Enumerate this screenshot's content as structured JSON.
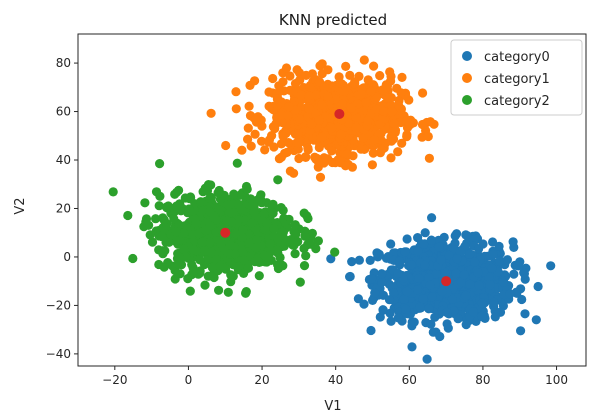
{
  "chart_data": {
    "type": "scatter",
    "title": "KNN predicted",
    "xlabel": "V1",
    "ylabel": "V2",
    "xlim": [
      -30,
      108
    ],
    "ylim": [
      -45,
      92
    ],
    "x_ticks": [
      -20,
      0,
      20,
      40,
      60,
      80,
      100
    ],
    "y_ticks": [
      -40,
      -20,
      0,
      20,
      40,
      60,
      80
    ],
    "grid": false,
    "legend_position": "top-right",
    "series": [
      {
        "name": "category0",
        "color": "#1f77b4",
        "center": [
          70,
          -10
        ],
        "spread": [
          9,
          8
        ],
        "count": 900
      },
      {
        "name": "category1",
        "color": "#ff7f0e",
        "center": [
          40,
          58
        ],
        "spread": [
          9,
          8
        ],
        "count": 900
      },
      {
        "name": "category2",
        "color": "#2ca02c",
        "center": [
          10,
          10
        ],
        "spread": [
          9,
          8
        ],
        "count": 900
      }
    ],
    "centroids": {
      "color": "#d62728",
      "points": [
        [
          70,
          -10
        ],
        [
          41,
          59
        ],
        [
          10,
          10
        ]
      ]
    }
  }
}
